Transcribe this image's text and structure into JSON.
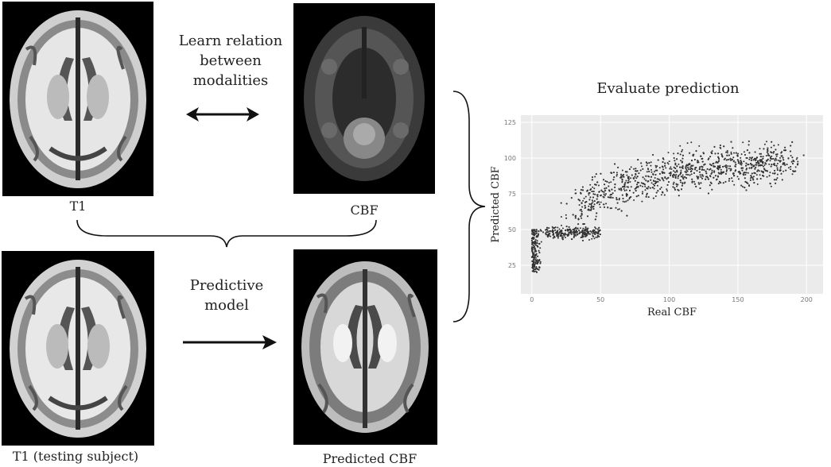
{
  "labels": {
    "t1": "T1",
    "cbf": "CBF",
    "t1_test": "T1 (testing subject)",
    "predicted_cbf": "Predicted CBF",
    "learn": [
      "Learn relation",
      "between",
      "modalities"
    ],
    "predictive": [
      "Predictive",
      "model"
    ],
    "evaluate": "Evaluate prediction"
  },
  "colors": {
    "arrow": "#111111",
    "point": "#333333",
    "plot_bg": "#ebebeb",
    "grid": "#ffffff"
  },
  "icons": {
    "double_arrow": "double-headed-arrow-icon",
    "arrow": "right-arrow-icon"
  },
  "chart_data": {
    "type": "scatter",
    "xlabel": "Real CBF",
    "ylabel": "Predicted CBF",
    "xlim": [
      -8,
      212
    ],
    "ylim": [
      5,
      130
    ],
    "xticks": [
      0,
      50,
      100,
      150,
      200
    ],
    "yticks": [
      25,
      50,
      75,
      100,
      125
    ],
    "grid": true,
    "point_count": 2500,
    "trend": "predicted CBF increases with real CBF; dense cluster near (20-40, 48-52) and around (80-120, 90-105)"
  }
}
